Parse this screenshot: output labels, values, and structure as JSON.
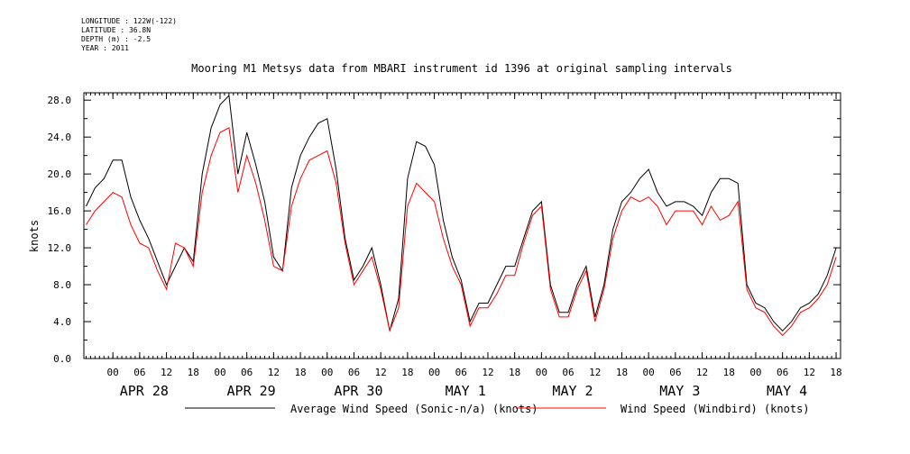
{
  "header": {
    "longitude": "LONGITUDE : 122W(-122)",
    "latitude": "LATITUDE : 36.8N",
    "depth": "DEPTH (m) : -2.5",
    "year": "YEAR : 2011"
  },
  "chart_data": {
    "type": "line",
    "title": "Mooring M1 Metsys data from MBARI instrument id 1396 at original sampling intervals",
    "ylabel": "knots",
    "xlabel": "",
    "ylim": [
      0,
      28.8
    ],
    "yticks": [
      "0.0",
      "4.0",
      "8.0",
      "12.0",
      "16.0",
      "20.0",
      "24.0",
      "28.0"
    ],
    "xlim_hours": [
      -6.5,
      163
    ],
    "hour_ticks": [
      "00",
      "06",
      "12",
      "18",
      "00",
      "06",
      "12",
      "18",
      "00",
      "06",
      "12",
      "18",
      "00",
      "06",
      "12",
      "18",
      "00",
      "06",
      "12",
      "18",
      "00",
      "06",
      "12",
      "18",
      "00",
      "06",
      "12",
      "18"
    ],
    "day_labels": [
      "APR 28",
      "APR 29",
      "APR 30",
      "MAY  1",
      "MAY  2",
      "MAY  3",
      "MAY  4"
    ],
    "grid": false,
    "legend_position": "bottom",
    "series": [
      {
        "name": "Average Wind Speed (Sonic-n/a) (knots)",
        "color": "#000000",
        "x": [
          -6,
          -4,
          -2,
          0,
          2,
          4,
          6,
          8,
          10,
          12,
          14,
          16,
          18,
          20,
          22,
          24,
          26,
          28,
          30,
          32,
          34,
          36,
          38,
          40,
          42,
          44,
          46,
          48,
          50,
          52,
          54,
          56,
          58,
          60,
          62,
          64,
          66,
          68,
          70,
          72,
          74,
          76,
          78,
          80,
          82,
          84,
          86,
          88,
          90,
          92,
          94,
          96,
          98,
          100,
          102,
          104,
          106,
          108,
          110,
          112,
          114,
          116,
          118,
          120,
          122,
          124,
          126,
          128,
          130,
          132,
          134,
          136,
          138,
          140,
          142,
          144,
          146,
          148,
          150,
          152,
          154,
          156,
          158,
          160,
          162
        ],
        "values": [
          16.5,
          18.5,
          19.5,
          21.5,
          21.5,
          17.5,
          15,
          13,
          10.5,
          8,
          10,
          12,
          10.5,
          20,
          25,
          27.5,
          28.5,
          20,
          24.5,
          21,
          17,
          11,
          9.5,
          18.5,
          22,
          24,
          25.5,
          26,
          20.5,
          13,
          8.5,
          10,
          12,
          8,
          3,
          6.5,
          19.5,
          23.5,
          23,
          21,
          15,
          11,
          8.5,
          4,
          6,
          6,
          8,
          10,
          10,
          13,
          16,
          17,
          8,
          5,
          5,
          8,
          10,
          4.5,
          8,
          14,
          17,
          18,
          19.5,
          20.5,
          18,
          16.5,
          17,
          17,
          16.5,
          15.5,
          18,
          19.5,
          19.5,
          19,
          8,
          6,
          5.5,
          4,
          3,
          4,
          5.5,
          6,
          7,
          9,
          12
        ]
      },
      {
        "name": "Wind Speed (Windbird) (knots)",
        "color": "#ff0000",
        "x": [
          -6,
          -4,
          -2,
          0,
          2,
          4,
          6,
          8,
          10,
          12,
          14,
          16,
          18,
          20,
          22,
          24,
          26,
          28,
          30,
          32,
          34,
          36,
          38,
          40,
          42,
          44,
          46,
          48,
          50,
          52,
          54,
          56,
          58,
          60,
          62,
          64,
          66,
          68,
          70,
          72,
          74,
          76,
          78,
          80,
          82,
          84,
          86,
          88,
          90,
          92,
          94,
          96,
          98,
          100,
          102,
          104,
          106,
          108,
          110,
          112,
          114,
          116,
          118,
          120,
          122,
          124,
          126,
          128,
          130,
          132,
          134,
          136,
          138,
          140,
          142,
          144,
          146,
          148,
          150,
          152,
          154,
          156,
          158,
          160,
          162
        ],
        "values": [
          14.5,
          16,
          17,
          18,
          17.5,
          14.5,
          12.5,
          12,
          9.5,
          7.5,
          12.5,
          12,
          10,
          18,
          22,
          24.5,
          25,
          18,
          22,
          19,
          15,
          10,
          9.5,
          16.5,
          19.5,
          21.5,
          22,
          22.5,
          19,
          12.5,
          8,
          9.5,
          11,
          7.5,
          3,
          5.5,
          16.5,
          19,
          18,
          17,
          13,
          10,
          8,
          3.5,
          5.5,
          5.5,
          7,
          9,
          9,
          12.5,
          15.5,
          16.5,
          7.5,
          4.5,
          4.5,
          7.5,
          9.5,
          4,
          7.5,
          13,
          16,
          17.5,
          17,
          17.5,
          16.5,
          14.5,
          16,
          16,
          16,
          14.5,
          16.5,
          15,
          15.5,
          17,
          7.5,
          5.5,
          5,
          3.5,
          2.5,
          3.5,
          5,
          5.5,
          6.5,
          8,
          11
        ]
      }
    ]
  }
}
